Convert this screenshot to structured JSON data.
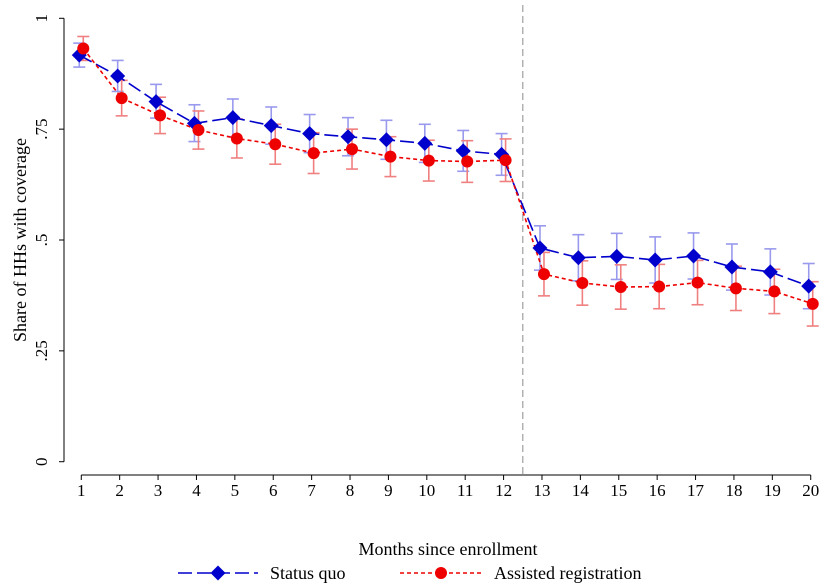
{
  "chart_data": {
    "type": "line",
    "xlabel": "Months since enrollment",
    "ylabel": "Share of HHs with coverage",
    "x": [
      1,
      2,
      3,
      4,
      5,
      6,
      7,
      8,
      9,
      10,
      11,
      12,
      13,
      14,
      15,
      16,
      17,
      18,
      19,
      20
    ],
    "xlim": [
      0.55,
      20.45
    ],
    "ylim": [
      -0.03,
      1.03
    ],
    "yticks": [
      0,
      0.25,
      0.5,
      0.75,
      1
    ],
    "ytick_labels": [
      "0",
      ".25",
      ".5",
      ".75",
      "1"
    ],
    "xtick_labels": [
      "1",
      "2",
      "3",
      "4",
      "5",
      "6",
      "7",
      "8",
      "9",
      "10",
      "11",
      "12",
      "13",
      "14",
      "15",
      "16",
      "17",
      "18",
      "19",
      "20"
    ],
    "vline_x": 12.5,
    "vline_color": "#a0a0a0",
    "grid": false,
    "legend_position": "bottom",
    "series": [
      {
        "name": "Status quo",
        "color": "#0000cc",
        "ci_color": "#9999ee",
        "marker": "diamond",
        "line_style": "long-dash",
        "values": [
          0.917,
          0.87,
          0.812,
          0.763,
          0.776,
          0.758,
          0.74,
          0.733,
          0.726,
          0.718,
          0.701,
          0.693,
          0.482,
          0.46,
          0.463,
          0.455,
          0.464,
          0.439,
          0.428,
          0.396
        ],
        "ci_low": [
          0.89,
          0.835,
          0.775,
          0.722,
          0.733,
          0.716,
          0.697,
          0.69,
          0.682,
          0.675,
          0.655,
          0.646,
          0.432,
          0.408,
          0.411,
          0.403,
          0.412,
          0.387,
          0.376,
          0.345
        ],
        "ci_high": [
          0.944,
          0.905,
          0.851,
          0.805,
          0.818,
          0.8,
          0.783,
          0.776,
          0.77,
          0.761,
          0.747,
          0.74,
          0.532,
          0.512,
          0.515,
          0.507,
          0.516,
          0.491,
          0.48,
          0.447
        ]
      },
      {
        "name": "Assisted registration",
        "color": "#ee0000",
        "ci_color": "#f08080",
        "marker": "circle",
        "line_style": "short-dash",
        "values": [
          0.932,
          0.82,
          0.781,
          0.748,
          0.729,
          0.716,
          0.696,
          0.705,
          0.688,
          0.679,
          0.677,
          0.68,
          0.423,
          0.403,
          0.394,
          0.395,
          0.404,
          0.391,
          0.384,
          0.356
        ],
        "ci_low": [
          0.905,
          0.78,
          0.74,
          0.705,
          0.685,
          0.671,
          0.65,
          0.66,
          0.643,
          0.633,
          0.63,
          0.632,
          0.374,
          0.353,
          0.344,
          0.345,
          0.354,
          0.341,
          0.334,
          0.306
        ],
        "ci_high": [
          0.959,
          0.86,
          0.822,
          0.791,
          0.773,
          0.761,
          0.742,
          0.75,
          0.733,
          0.725,
          0.724,
          0.728,
          0.472,
          0.453,
          0.444,
          0.445,
          0.454,
          0.441,
          0.434,
          0.406
        ]
      }
    ]
  }
}
